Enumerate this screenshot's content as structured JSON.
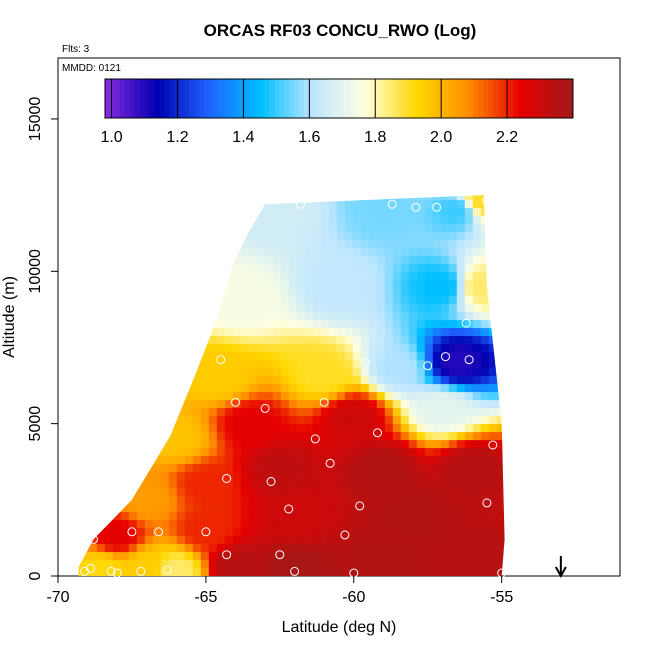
{
  "chart_data": {
    "type": "heatmap",
    "title": "ORCAS RF03 CONCU_RWO (Log)",
    "subtitle_flts": "Flts: 3",
    "annotation_mmdd": "MMDD: 0121",
    "xlabel": "Latitude (deg N)",
    "ylabel": "Altitude (m)",
    "xlim": [
      -70,
      -51
    ],
    "ylim": [
      0,
      17000
    ],
    "x_ticks": [
      -70,
      -65,
      -60,
      -55
    ],
    "x_tick_labels": [
      "-70",
      "-65",
      "-60",
      "-55"
    ],
    "y_ticks": [
      0,
      5000,
      10000,
      15000
    ],
    "y_tick_labels": [
      "0",
      "5000",
      "10000",
      "15000"
    ],
    "colorbar": {
      "range": [
        0.98,
        2.4
      ],
      "ticks": [
        1.0,
        1.2,
        1.4,
        1.6,
        1.8,
        2.0,
        2.2
      ],
      "tick_labels": [
        "1.0",
        "1.2",
        "1.4",
        "1.6",
        "1.8",
        "2.0",
        "2.2"
      ],
      "colors": [
        "#8a2be2",
        "#0000b0",
        "#1e64ff",
        "#00bfff",
        "#bfe6ff",
        "#ffffe0",
        "#ffd700",
        "#ff8c00",
        "#e60000",
        "#a01a1a"
      ],
      "placement": "top-inside"
    },
    "grid": false,
    "arrow_marker_x": -53,
    "outline": [
      [
        -69.3,
        0
      ],
      [
        -69.3,
        300
      ],
      [
        -68.8,
        1200
      ],
      [
        -67.5,
        2500
      ],
      [
        -66.2,
        4600
      ],
      [
        -65.4,
        6500
      ],
      [
        -64.6,
        8500
      ],
      [
        -64.1,
        10200
      ],
      [
        -63.6,
        11200
      ],
      [
        -63.0,
        12200
      ],
      [
        -55.6,
        12500
      ],
      [
        -55.5,
        9500
      ],
      [
        -55.0,
        5000
      ],
      [
        -54.9,
        1200
      ],
      [
        -55.0,
        0
      ]
    ],
    "values_grid_note": "CONCU_RWO log10 field sampled along flight track",
    "samples": [
      {
        "lat": -68.5,
        "alt": 200,
        "v": 1.92
      },
      {
        "lat": -67.0,
        "alt": 300,
        "v": 1.95
      },
      {
        "lat": -66.0,
        "alt": 150,
        "v": 1.85
      },
      {
        "lat": -64.0,
        "alt": 300,
        "v": 2.35
      },
      {
        "lat": -62.0,
        "alt": 300,
        "v": 2.38
      },
      {
        "lat": -59.0,
        "alt": 500,
        "v": 2.36
      },
      {
        "lat": -56.0,
        "alt": 400,
        "v": 2.35
      },
      {
        "lat": -68.0,
        "alt": 1300,
        "v": 2.25
      },
      {
        "lat": -65.0,
        "alt": 1500,
        "v": 2.2
      },
      {
        "lat": -62.0,
        "alt": 1800,
        "v": 2.3
      },
      {
        "lat": -58.0,
        "alt": 2000,
        "v": 2.36
      },
      {
        "lat": -67.0,
        "alt": 2500,
        "v": 2.05
      },
      {
        "lat": -65.0,
        "alt": 3000,
        "v": 2.2
      },
      {
        "lat": -62.5,
        "alt": 3500,
        "v": 2.33
      },
      {
        "lat": -59.0,
        "alt": 3500,
        "v": 2.36
      },
      {
        "lat": -56.0,
        "alt": 3500,
        "v": 2.35
      },
      {
        "lat": -66.0,
        "alt": 4500,
        "v": 1.97
      },
      {
        "lat": -63.5,
        "alt": 5000,
        "v": 2.25
      },
      {
        "lat": -60.0,
        "alt": 5200,
        "v": 2.3
      },
      {
        "lat": -57.0,
        "alt": 5500,
        "v": 1.7
      },
      {
        "lat": -64.5,
        "alt": 6500,
        "v": 1.95
      },
      {
        "lat": -61.0,
        "alt": 6600,
        "v": 1.9
      },
      {
        "lat": -58.5,
        "alt": 6800,
        "v": 1.6
      },
      {
        "lat": -56.5,
        "alt": 7000,
        "v": 1.1
      },
      {
        "lat": -63.8,
        "alt": 9000,
        "v": 1.75
      },
      {
        "lat": -60.5,
        "alt": 9500,
        "v": 1.62
      },
      {
        "lat": -57.0,
        "alt": 9500,
        "v": 1.45
      },
      {
        "lat": -55.7,
        "alt": 9500,
        "v": 1.85
      },
      {
        "lat": -62.5,
        "alt": 12000,
        "v": 1.65
      },
      {
        "lat": -59.0,
        "alt": 12000,
        "v": 1.55
      },
      {
        "lat": -56.5,
        "alt": 12000,
        "v": 1.5
      },
      {
        "lat": -55.7,
        "alt": 12300,
        "v": 1.9
      }
    ],
    "points": [
      [
        -69.1,
        150
      ],
      [
        -68.9,
        250
      ],
      [
        -68.8,
        1200
      ],
      [
        -68.2,
        150
      ],
      [
        -68.0,
        100
      ],
      [
        -67.2,
        150
      ],
      [
        -66.3,
        200
      ],
      [
        -64.3,
        700
      ],
      [
        -62.0,
        150
      ],
      [
        -62.5,
        700
      ],
      [
        -60.0,
        100
      ],
      [
        -55.0,
        100
      ],
      [
        -66.6,
        1450
      ],
      [
        -67.5,
        1450
      ],
      [
        -65.0,
        1450
      ],
      [
        -60.3,
        1350
      ],
      [
        -62.2,
        2200
      ],
      [
        -59.8,
        2300
      ],
      [
        -55.5,
        2400
      ],
      [
        -64.3,
        3200
      ],
      [
        -62.8,
        3100
      ],
      [
        -60.8,
        3700
      ],
      [
        -61.3,
        4500
      ],
      [
        -59.2,
        4700
      ],
      [
        -55.3,
        4300
      ],
      [
        -64.0,
        5700
      ],
      [
        -63.0,
        5500
      ],
      [
        -61.0,
        5700
      ],
      [
        -64.5,
        7100
      ],
      [
        -57.5,
        6900
      ],
      [
        -56.9,
        7200
      ],
      [
        -56.1,
        7100
      ],
      [
        -56.2,
        8300
      ],
      [
        -59.6,
        7000
      ],
      [
        -63.5,
        12100
      ],
      [
        -61.8,
        12200
      ],
      [
        -58.7,
        12200
      ],
      [
        -57.9,
        12100
      ],
      [
        -57.2,
        12100
      ],
      [
        -55.5,
        12300
      ]
    ]
  }
}
